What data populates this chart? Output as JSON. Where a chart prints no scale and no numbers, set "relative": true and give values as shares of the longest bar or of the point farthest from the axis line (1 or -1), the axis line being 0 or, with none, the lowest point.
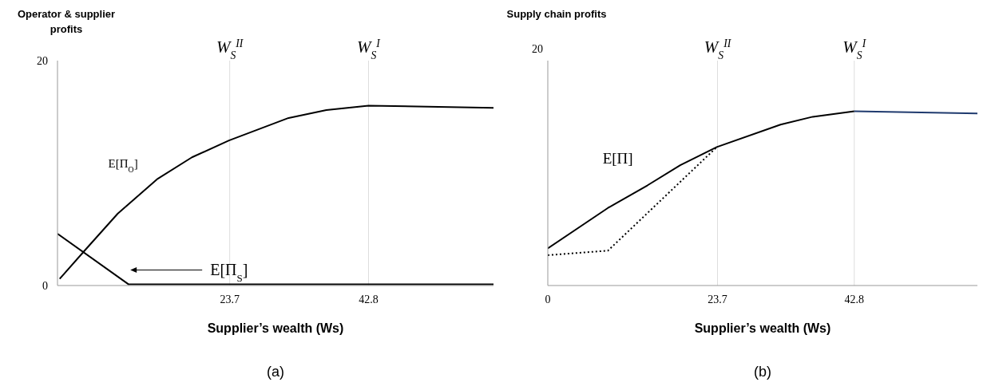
{
  "chart_data": [
    {
      "type": "line",
      "title": "(a)",
      "xlabel": "Supplier’s wealth (Ws)",
      "ylabel": "Operator & supplier profits",
      "xlim": [
        0,
        60
      ],
      "xticks": [
        23.7,
        42.8
      ],
      "ylim": [
        0,
        20
      ],
      "yticks": [
        0,
        20
      ],
      "ref_lines": [
        {
          "axis": "x",
          "value": 23.7,
          "label": "W$_{S}$$^{II}$",
          "color": "#dddddd"
        },
        {
          "axis": "x",
          "value": 42.8,
          "label": "W$_{S}$$^{I}$",
          "color": "#dddddd"
        }
      ],
      "series": [
        {
          "name": "E[Π$_{O}$]",
          "color": "#000000",
          "x": [
            0.3,
            4,
            8.3,
            13.8,
            18.5,
            23.6,
            31.8,
            37,
            42.8,
            60
          ],
          "values": [
            0.6,
            3.3,
            6.4,
            9.5,
            11.4,
            12.9,
            14.9,
            15.6,
            16.0,
            15.8
          ]
        },
        {
          "name": "E[Π$_{S}$]",
          "color": "#000000",
          "x": [
            0,
            9.8,
            60
          ],
          "values": [
            4.6,
            0.1,
            0.1
          ]
        }
      ]
    },
    {
      "type": "line",
      "title": "(b)",
      "xlabel": "Supplier’s wealth (Ws)",
      "ylabel": "Supply chain profits",
      "relative": true,
      "xlim": [
        0,
        60
      ],
      "xticks": [
        0,
        23.7,
        42.8
      ],
      "ref_lines": [
        {
          "axis": "x",
          "value": 23.7,
          "label": "W$_{S}$$^{II}$",
          "color": "#dddddd"
        },
        {
          "axis": "x",
          "value": 42.8,
          "label": "W$_{S}$$^{I}$",
          "color": "#dddddd"
        }
      ],
      "series": [
        {
          "name": "E[Π]",
          "color": "#000000",
          "x": [
            0,
            8.4,
            13.9,
            18.5,
            23.6,
            32.5,
            37,
            42.8
          ],
          "values": [
            0.213,
            0.445,
            0.574,
            0.69,
            0.794,
            0.923,
            0.968,
            1
          ]
        },
        {
          "color": "#1f3a6e",
          "x": [
            42.8,
            60
          ],
          "values": [
            1,
            0.987
          ]
        },
        {
          "color": "#000000",
          "line_style": "dotted",
          "x": [
            0,
            8.4,
            23.6
          ],
          "values": [
            0.174,
            0.2,
            0.794
          ]
        }
      ],
      "annotations": [
        "20"
      ]
    }
  ]
}
